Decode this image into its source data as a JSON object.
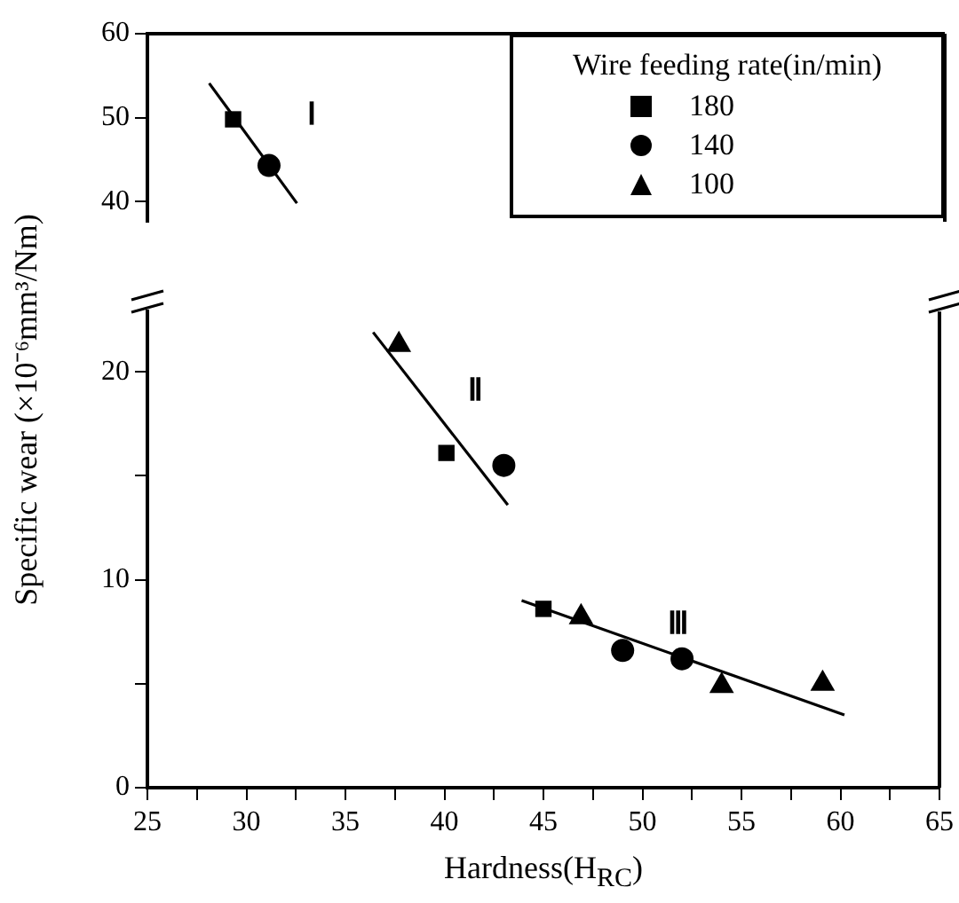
{
  "chart_data": [
    {
      "type": "scatter",
      "xlim": [
        25,
        65
      ],
      "ylim": [
        37.6,
        60
      ],
      "yticks": [
        40,
        50,
        60
      ],
      "tick_labels": "y",
      "grid": false,
      "legend": "right",
      "legend_title": "Wire feeding rate(in/min)",
      "annotations": [
        "Ⅰ"
      ],
      "series": [
        {
          "name": "180",
          "type": "scatter",
          "marker": "square",
          "color": "#000000",
          "x": [
            29.3
          ],
          "values": [
            49.8
          ]
        },
        {
          "name": "140",
          "type": "scatter",
          "marker": "circle",
          "color": "#000000",
          "x": [
            31.1
          ],
          "values": [
            44.3
          ]
        },
        {
          "name": "100",
          "type": "scatter",
          "marker": "triangle",
          "color": "#000000"
        },
        {
          "type": "line",
          "marker": "none",
          "line_style": "solid",
          "color": "#000000",
          "x": [
            28.1,
            32.5
          ],
          "values": [
            54.1,
            39.8
          ]
        }
      ]
    },
    {
      "type": "scatter",
      "xlim": [
        25,
        65
      ],
      "xticks": [
        25,
        {
          "value": 27.5,
          "label": null
        },
        30,
        {
          "value": 32.5,
          "label": null
        },
        35,
        {
          "value": 37.5,
          "label": null
        },
        40,
        {
          "value": 42.5,
          "label": null
        },
        45,
        {
          "value": 47.5,
          "label": null
        },
        50,
        {
          "value": 52.5,
          "label": null
        },
        55,
        {
          "value": 57.5,
          "label": null
        },
        60,
        {
          "value": 62.5,
          "label": null
        },
        65
      ],
      "ylim": [
        0,
        22.9
      ],
      "yticks": [
        0,
        {
          "value": 5,
          "label": null
        },
        10,
        {
          "value": 15,
          "label": null
        },
        20
      ],
      "grid": false,
      "xlabel": "Hardness(H$_{RC}$)",
      "ylabel": "Specific wear (×10⁻⁶mm³/Nm)",
      "annotations": [
        "Ⅱ",
        "Ⅲ"
      ],
      "series": [
        {
          "type": "scatter",
          "marker": "square",
          "color": "#000000",
          "x": [
            40.1,
            45.0
          ],
          "values": [
            16.1,
            8.6
          ]
        },
        {
          "type": "scatter",
          "marker": "circle",
          "color": "#000000",
          "x": [
            43.0,
            49.0,
            52.0
          ],
          "values": [
            15.5,
            6.6,
            6.2
          ]
        },
        {
          "type": "scatter",
          "marker": "triangle",
          "color": "#000000",
          "x": [
            37.7,
            46.9,
            54.0,
            59.1
          ],
          "values": [
            21.3,
            8.2,
            4.9,
            5.0
          ]
        },
        {
          "type": "line",
          "marker": "none",
          "line_style": "solid",
          "color": "#000000",
          "x": [
            36.4,
            43.2
          ],
          "values": [
            21.9,
            13.6
          ]
        },
        {
          "type": "line",
          "marker": "none",
          "line_style": "solid",
          "color": "#000000",
          "x": [
            43.9,
            60.2
          ],
          "values": [
            9.0,
            3.5
          ]
        }
      ]
    }
  ]
}
